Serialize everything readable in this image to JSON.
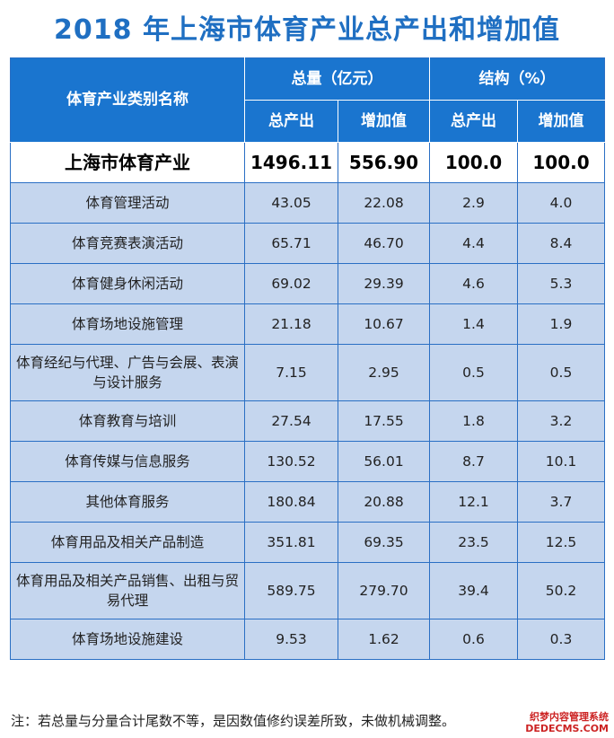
{
  "title": "2018 年上海市体育产业总产出和增加值",
  "header": {
    "category": "体育产业类别名称",
    "group_total": "总量（亿元）",
    "group_structure": "结构（%）",
    "output": "总产出",
    "value_added": "增加值",
    "output2": "总产出",
    "value_added2": "增加值"
  },
  "total_row": {
    "name": "上海市体育产业",
    "output": "1496.11",
    "value_added": "556.90",
    "output_pct": "100.0",
    "value_added_pct": "100.0"
  },
  "rows": [
    {
      "name": "体育管理活动",
      "output": "43.05",
      "value_added": "22.08",
      "output_pct": "2.9",
      "value_added_pct": "4.0"
    },
    {
      "name": "体育竞赛表演活动",
      "output": "65.71",
      "value_added": "46.70",
      "output_pct": "4.4",
      "value_added_pct": "8.4"
    },
    {
      "name": "体育健身休闲活动",
      "output": "69.02",
      "value_added": "29.39",
      "output_pct": "4.6",
      "value_added_pct": "5.3"
    },
    {
      "name": "体育场地设施管理",
      "output": "21.18",
      "value_added": "10.67",
      "output_pct": "1.4",
      "value_added_pct": "1.9"
    },
    {
      "name": "体育经纪与代理、广告与会展、表演与设计服务",
      "output": "7.15",
      "value_added": "2.95",
      "output_pct": "0.5",
      "value_added_pct": "0.5"
    },
    {
      "name": "体育教育与培训",
      "output": "27.54",
      "value_added": "17.55",
      "output_pct": "1.8",
      "value_added_pct": "3.2"
    },
    {
      "name": "体育传媒与信息服务",
      "output": "130.52",
      "value_added": "56.01",
      "output_pct": "8.7",
      "value_added_pct": "10.1"
    },
    {
      "name": "其他体育服务",
      "output": "180.84",
      "value_added": "20.88",
      "output_pct": "12.1",
      "value_added_pct": "3.7"
    },
    {
      "name": "体育用品及相关产品制造",
      "output": "351.81",
      "value_added": "69.35",
      "output_pct": "23.5",
      "value_added_pct": "12.5"
    },
    {
      "name": "体育用品及相关产品销售、出租与贸易代理",
      "output": "589.75",
      "value_added": "279.70",
      "output_pct": "39.4",
      "value_added_pct": "50.2"
    },
    {
      "name": "体育场地设施建设",
      "output": "9.53",
      "value_added": "1.62",
      "output_pct": "0.6",
      "value_added_pct": "0.3"
    }
  ],
  "note": "注：若总量与分量合计尾数不等，是因数值修约误差所致，未做机械调整。",
  "watermark": [
    "织梦内容管理系统",
    "DEDECMS.COM"
  ],
  "colors": {
    "title": "#1f6fc2",
    "header_bg": "#1a75cf",
    "row_bg": "#c5d6ee",
    "border": "#2a6fc4"
  }
}
